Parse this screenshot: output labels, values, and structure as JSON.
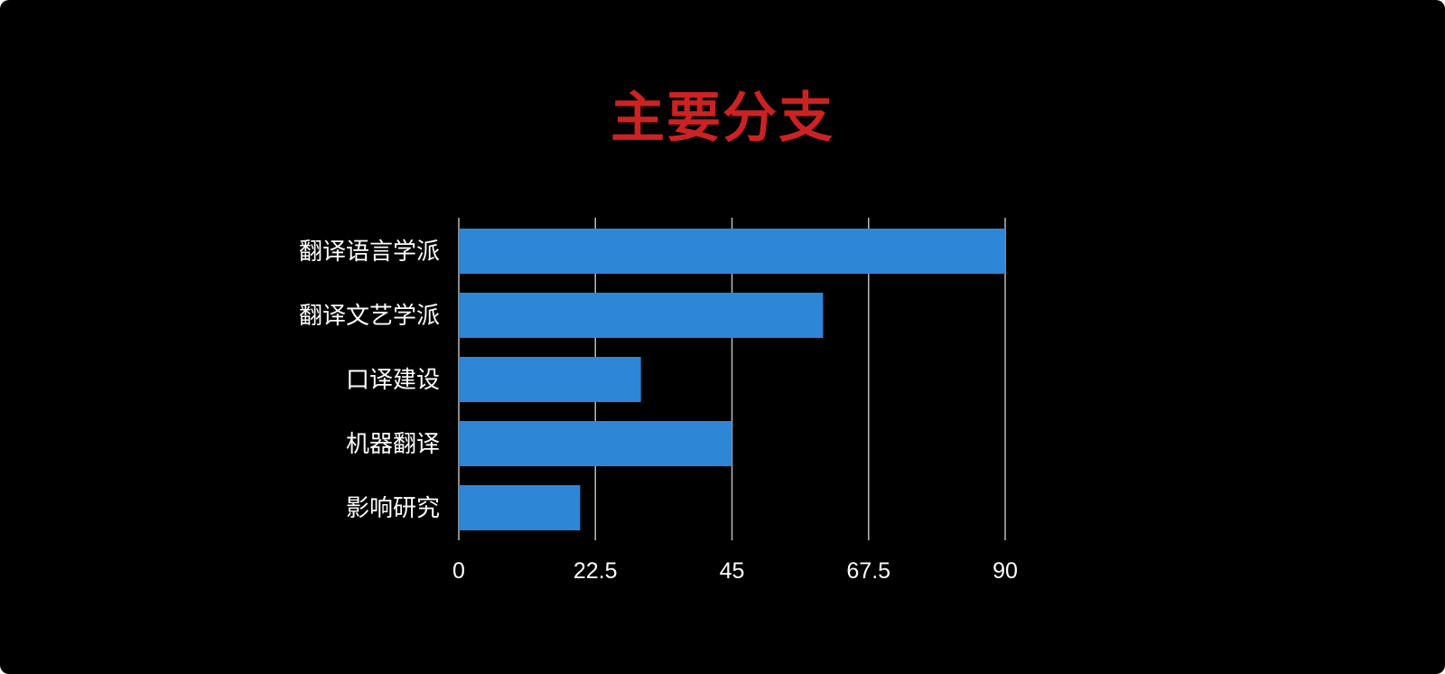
{
  "chart_data": {
    "type": "bar",
    "orientation": "horizontal",
    "title": "主要分支",
    "categories": [
      "翻译语言学派",
      "翻译文艺学派",
      "口译建设",
      "机器翻译",
      "影响研究"
    ],
    "values": [
      90,
      60,
      30,
      45,
      20
    ],
    "xlim": [
      0,
      90
    ],
    "xticks": [
      "0",
      "22.5",
      "45",
      "67.5",
      "90"
    ],
    "grid": true,
    "colors": {
      "bar": "#2e86d6",
      "title": "#cc2222",
      "background": "#000000",
      "grid": "#bbbbbb",
      "text": "#ffffff"
    }
  }
}
